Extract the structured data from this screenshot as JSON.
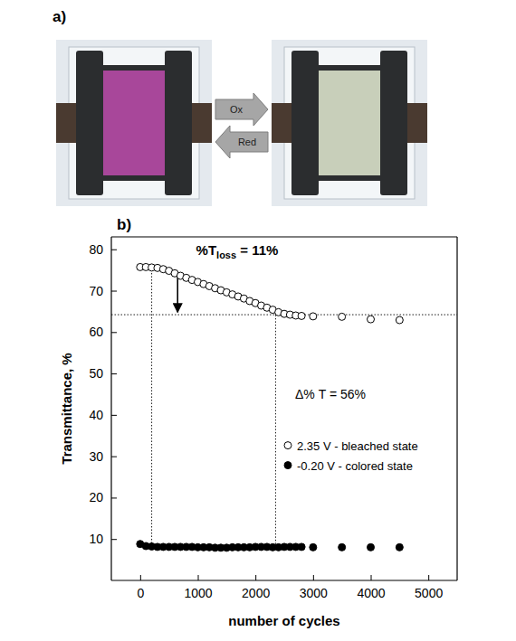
{
  "panel_a": {
    "label": "a)",
    "arrows": [
      "Ox",
      "Red"
    ]
  },
  "chart_data": {
    "type": "scatter",
    "label": "b)",
    "x_label": "number of cycles",
    "y_label": "Transmittance, %",
    "xlim": [
      -500,
      5500
    ],
    "xticks": [
      0,
      1000,
      2000,
      3000,
      4000,
      5000
    ],
    "ylim": [
      0,
      83
    ],
    "yticks": [
      10,
      20,
      30,
      40,
      50,
      60,
      70,
      80
    ],
    "grid": false,
    "legend": "right",
    "x": [
      0,
      100,
      200,
      300,
      400,
      500,
      600,
      700,
      800,
      900,
      1000,
      1100,
      1200,
      1300,
      1400,
      1500,
      1600,
      1700,
      1800,
      1900,
      2000,
      2100,
      2200,
      2300,
      2400,
      2500,
      2600,
      2700,
      2800,
      3000,
      3500,
      4000,
      4500
    ],
    "series": [
      {
        "name": "2.35 V - bleached state",
        "color": "#000000",
        "marker": "open-circle",
        "values": [
          75.7,
          75.7,
          75.6,
          75.5,
          75.2,
          74.8,
          74.2,
          73.6,
          73.1,
          72.6,
          72.1,
          71.6,
          71.1,
          70.6,
          70.1,
          69.6,
          69.1,
          68.6,
          68.1,
          67.5,
          67.0,
          66.4,
          65.9,
          65.4,
          64.8,
          64.4,
          64.2,
          64.0,
          63.9,
          63.8,
          63.7,
          63.1,
          62.9
        ]
      },
      {
        "name": "-0.20 V - colored state",
        "color": "#000000",
        "marker": "circle",
        "values": [
          8.8,
          8.3,
          8.2,
          8.1,
          8.1,
          8.1,
          8.1,
          8.1,
          8.1,
          8.1,
          8.0,
          8.0,
          8.0,
          7.9,
          7.9,
          7.9,
          8.0,
          8.0,
          8.0,
          8.0,
          8.1,
          8.1,
          8.1,
          8.0,
          8.0,
          8.1,
          8.1,
          8.1,
          8.1,
          8.0,
          8.0,
          8.0,
          8.0
        ]
      }
    ],
    "hline": 64.2,
    "vlines": [
      {
        "x": 200,
        "y": [
          8.2,
          75.6
        ]
      },
      {
        "x": 2350,
        "y": [
          8.0,
          65.1
        ]
      }
    ],
    "arrow": {
      "x": 650,
      "y": [
        73.6,
        64.8
      ]
    },
    "annotations": [
      {
        "text": "%T",
        "sub": "loss",
        "rest": " = 11%"
      },
      {
        "text": "Δ% T = 56%"
      }
    ]
  }
}
